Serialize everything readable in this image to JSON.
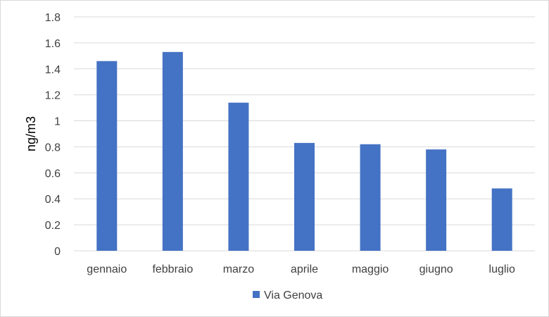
{
  "chart_data": {
    "type": "bar",
    "categories": [
      "gennaio",
      "febbraio",
      "marzo",
      "aprile",
      "maggio",
      "giugno",
      "luglio"
    ],
    "series": [
      {
        "name": "Via Genova",
        "values": [
          1.46,
          1.53,
          1.14,
          0.83,
          0.82,
          0.78,
          0.48
        ],
        "color": "#4472c4"
      }
    ],
    "xlabel": "",
    "ylabel": "ng/m3",
    "ylim": [
      0,
      1.8
    ],
    "yticks": [
      "0",
      "0.2",
      "0.4",
      "0.6",
      "0.8",
      "1",
      "1.2",
      "1.4",
      "1.6",
      "1.8"
    ],
    "grid": true,
    "legend": "bottom"
  }
}
